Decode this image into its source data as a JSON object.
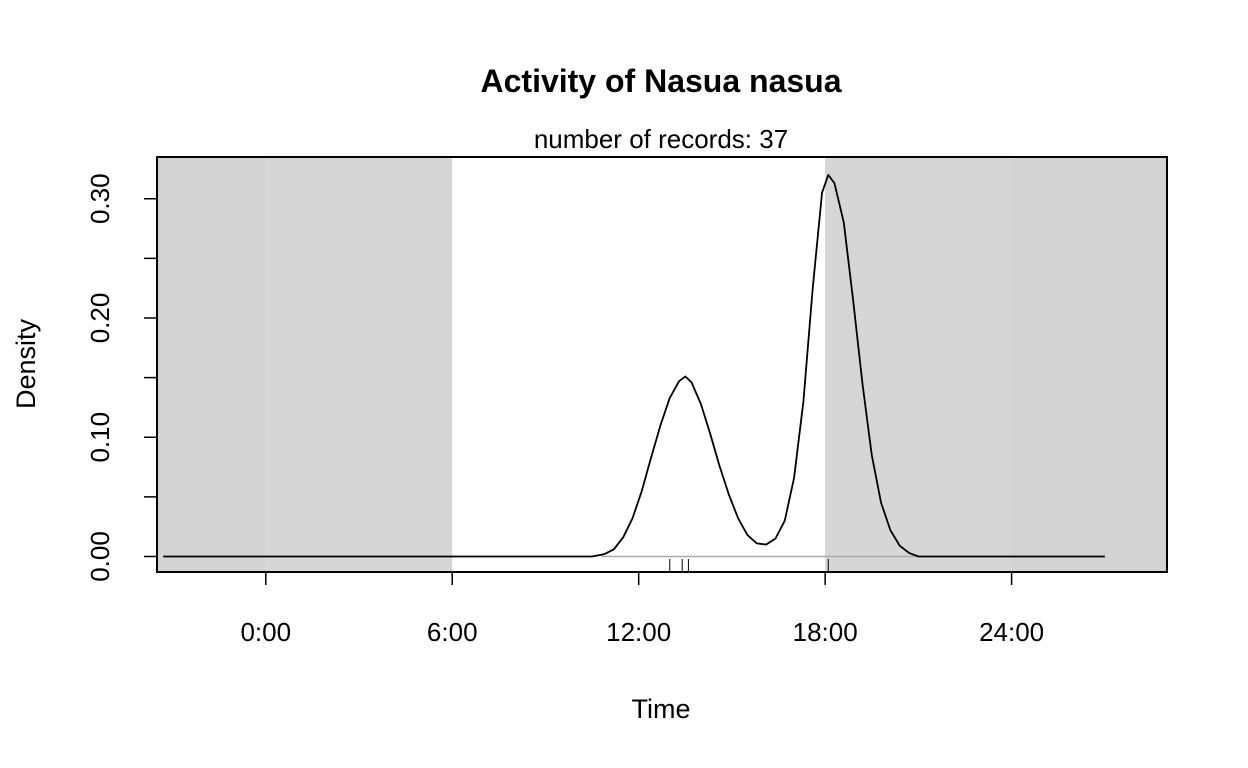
{
  "chart_data": {
    "type": "line",
    "title": "Activity of Nasua nasua",
    "subtitle": "number of records: 37",
    "xlabel": "Time",
    "ylabel": "Density",
    "xlim": [
      -3.5,
      29
    ],
    "ylim": [
      -0.013,
      0.335
    ],
    "x_ticks": [
      {
        "value": 0,
        "label": "0:00"
      },
      {
        "value": 6,
        "label": "6:00"
      },
      {
        "value": 12,
        "label": "12:00"
      },
      {
        "value": 18,
        "label": "18:00"
      },
      {
        "value": 24,
        "label": "24:00"
      }
    ],
    "y_ticks_labeled": [
      {
        "value": 0.0,
        "label": "0.00"
      },
      {
        "value": 0.1,
        "label": "0.10"
      },
      {
        "value": 0.2,
        "label": "0.20"
      },
      {
        "value": 0.3,
        "label": "0.30"
      }
    ],
    "y_ticks_minor": [
      0.05,
      0.15,
      0.25
    ],
    "night_shading": [
      {
        "from": -3.5,
        "to": 0,
        "color": "#d3d3d3"
      },
      {
        "from": 0,
        "to": 6,
        "color": "#d6d6d6"
      },
      {
        "from": 18,
        "to": 24,
        "color": "#d6d6d6"
      },
      {
        "from": 24,
        "to": 29,
        "color": "#d3d3d3"
      }
    ],
    "series": [
      {
        "values": [
          [
            -3.3,
            0
          ],
          [
            10.5,
            0
          ],
          [
            10.9,
            0.002
          ],
          [
            11.2,
            0.006
          ],
          [
            11.5,
            0.016
          ],
          [
            11.8,
            0.032
          ],
          [
            12.1,
            0.055
          ],
          [
            12.4,
            0.083
          ],
          [
            12.7,
            0.11
          ],
          [
            13.0,
            0.133
          ],
          [
            13.3,
            0.147
          ],
          [
            13.5,
            0.151
          ],
          [
            13.7,
            0.146
          ],
          [
            14.0,
            0.128
          ],
          [
            14.3,
            0.103
          ],
          [
            14.6,
            0.076
          ],
          [
            14.9,
            0.052
          ],
          [
            15.2,
            0.032
          ],
          [
            15.5,
            0.018
          ],
          [
            15.8,
            0.011
          ],
          [
            16.1,
            0.01
          ],
          [
            16.4,
            0.015
          ],
          [
            16.7,
            0.03
          ],
          [
            17.0,
            0.066
          ],
          [
            17.3,
            0.13
          ],
          [
            17.6,
            0.225
          ],
          [
            17.9,
            0.305
          ],
          [
            18.1,
            0.32
          ],
          [
            18.3,
            0.313
          ],
          [
            18.6,
            0.28
          ],
          [
            18.9,
            0.215
          ],
          [
            19.2,
            0.145
          ],
          [
            19.5,
            0.085
          ],
          [
            19.8,
            0.045
          ],
          [
            20.1,
            0.022
          ],
          [
            20.4,
            0.009
          ],
          [
            20.7,
            0.003
          ],
          [
            21.0,
            0
          ],
          [
            27.0,
            0
          ]
        ],
        "color": "#000000"
      }
    ],
    "baseline": {
      "from": 10.8,
      "to": 21.0,
      "value": 0,
      "color": "#aaaaaa"
    },
    "rug": [
      13.0,
      13.4,
      13.6,
      18.1
    ],
    "grid": false,
    "legend": "none"
  }
}
